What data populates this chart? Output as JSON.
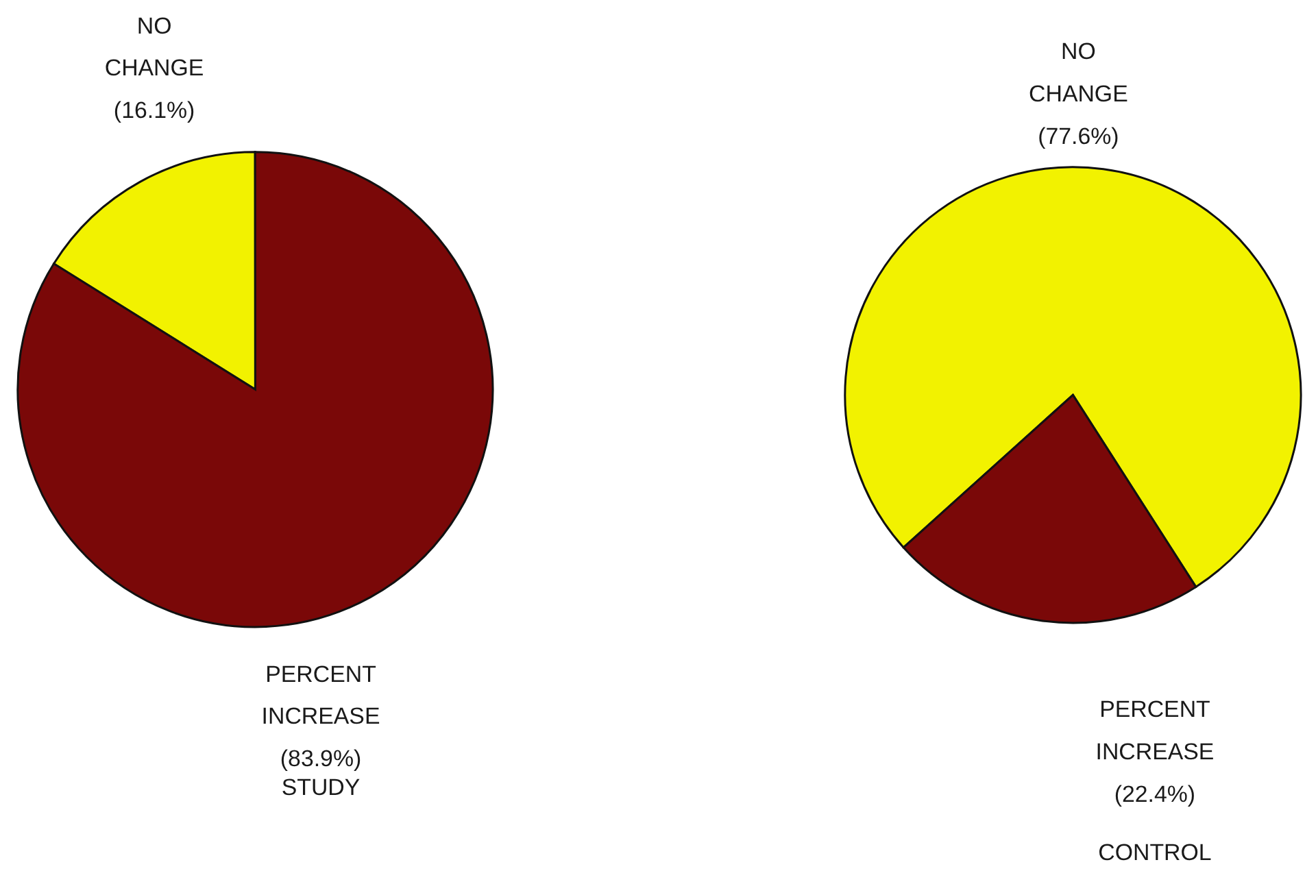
{
  "chart_data": [
    {
      "type": "pie",
      "title": "STUDY",
      "categories": [
        "NO CHANGE",
        "PERCENT INCREASE"
      ],
      "values": [
        16.1,
        83.9
      ],
      "colors": [
        "#f2f200",
        "#7a0808"
      ],
      "value_labels": [
        "(16.1%)",
        "(83.9%)"
      ]
    },
    {
      "type": "pie",
      "title": "CONTROL",
      "categories": [
        "NO CHANGE",
        "PERCENT INCREASE"
      ],
      "values": [
        77.6,
        22.4
      ],
      "colors": [
        "#f2f200",
        "#7a0808"
      ],
      "value_labels": [
        "(77.6%)",
        "(22.4%)"
      ]
    }
  ]
}
